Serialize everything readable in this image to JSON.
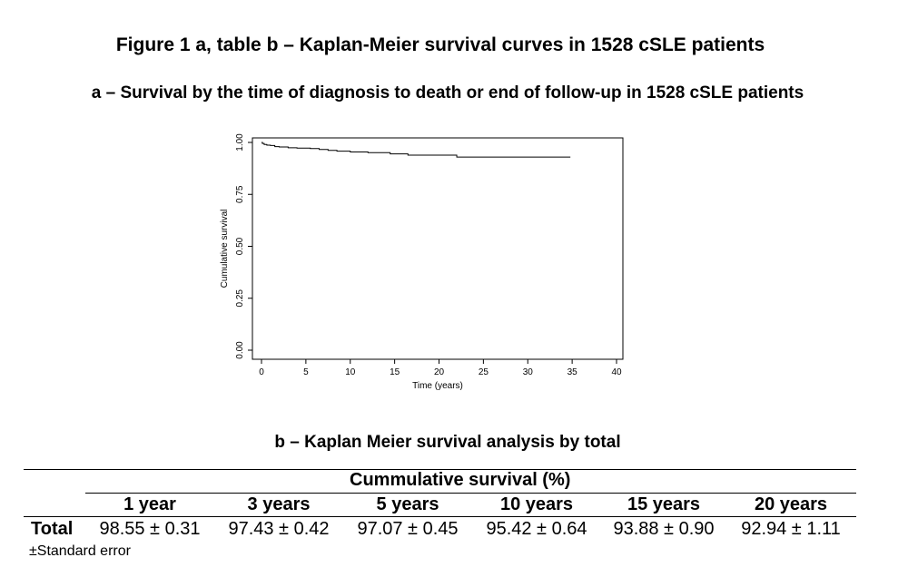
{
  "figure_title": "Figure 1 a, table b – Kaplan-Meier survival curves in 1528 cSLE patients",
  "panel_a_title": "a – Survival by the time of diagnosis to death or end of follow-up in 1528 cSLE patients",
  "chart_data": {
    "type": "line",
    "title": "",
    "xlabel": "Time (years)",
    "ylabel": "Cumulative survival",
    "xlim": [
      0,
      40
    ],
    "ylim": [
      0,
      1
    ],
    "xticks": [
      0,
      5,
      10,
      15,
      20,
      25,
      30,
      35,
      40
    ],
    "xtick_labels": [
      "0",
      "5",
      "10",
      "15",
      "20",
      "25",
      "30",
      "35",
      "40"
    ],
    "yticks": [
      0,
      0.25,
      0.5,
      0.75,
      1
    ],
    "ytick_labels": [
      "0.00",
      "0.25",
      "0.50",
      "0.75",
      "1.00"
    ],
    "grid": false,
    "step": true,
    "series": [
      {
        "color": "#000000",
        "x": [
          0,
          0.1,
          0.3,
          0.6,
          1,
          1.5,
          2,
          3,
          4,
          5.5,
          6.5,
          7.5,
          8.5,
          10,
          12,
          14.5,
          16.5,
          22,
          34.8
        ],
        "y": [
          1,
          0.995,
          0.99,
          0.987,
          0.9855,
          0.98,
          0.978,
          0.9743,
          0.9725,
          0.9707,
          0.966,
          0.962,
          0.958,
          0.9542,
          0.951,
          0.945,
          0.9388,
          0.9294,
          0.9294
        ]
      }
    ]
  },
  "panel_b_title": "b – Kaplan Meier survival analysis by total",
  "table": {
    "group_header": "Cummulative survival (%)",
    "columns": [
      "1 year",
      "3 years",
      "5 years",
      "10 years",
      "15 years",
      "20 years"
    ],
    "rows": [
      {
        "label": "Total",
        "values": [
          "98.55 ± 0.31",
          "97.43 ± 0.42",
          "97.07 ± 0.45",
          "95.42 ± 0.64",
          "93.88 ± 0.90",
          "92.94 ± 1.11"
        ]
      }
    ],
    "footnote": "±Standard error"
  }
}
